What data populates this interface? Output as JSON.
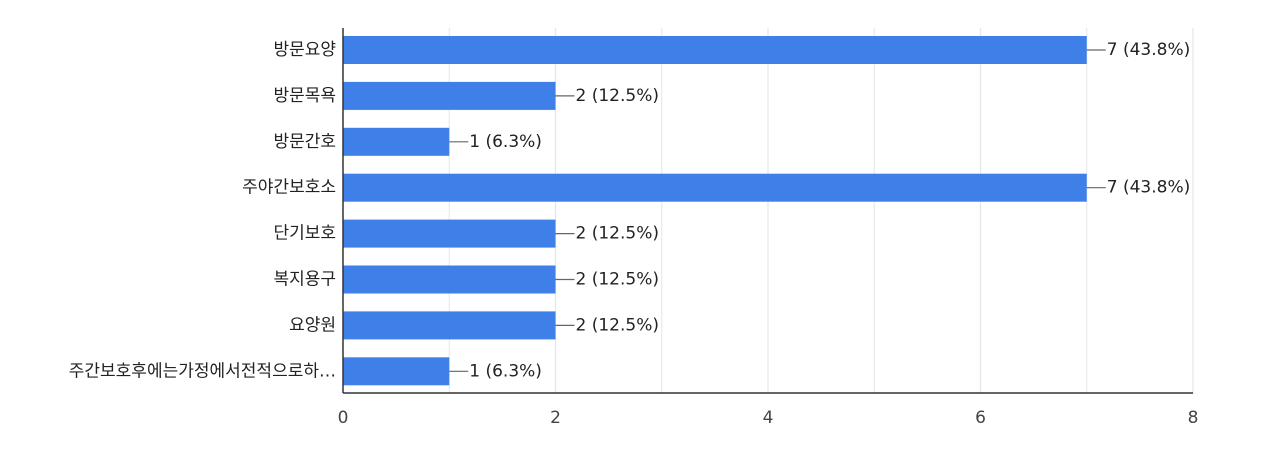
{
  "chart_data": {
    "type": "bar",
    "orientation": "horizontal",
    "categories": [
      "방문요양",
      "방문목욕",
      "방문간호",
      "주야간보호소",
      "단기보호",
      "복지용구",
      "요양원",
      "주간보호후에는가정에서전적으로하…"
    ],
    "values": [
      7,
      2,
      1,
      7,
      2,
      2,
      2,
      1
    ],
    "data_labels": [
      "7 (43.8%)",
      "2 (12.5%)",
      "1 (6.3%)",
      "7 (43.8%)",
      "2 (12.5%)",
      "2 (12.5%)",
      "2 (12.5%)",
      "1 (6.3%)"
    ],
    "x_ticks": [
      "0",
      "2",
      "4",
      "6",
      "8"
    ],
    "xlim": [
      0,
      8
    ],
    "grid": true,
    "bar_color": "#3f7fe8",
    "grid_color": "#e6e6e6",
    "axis_color": "#333333"
  }
}
